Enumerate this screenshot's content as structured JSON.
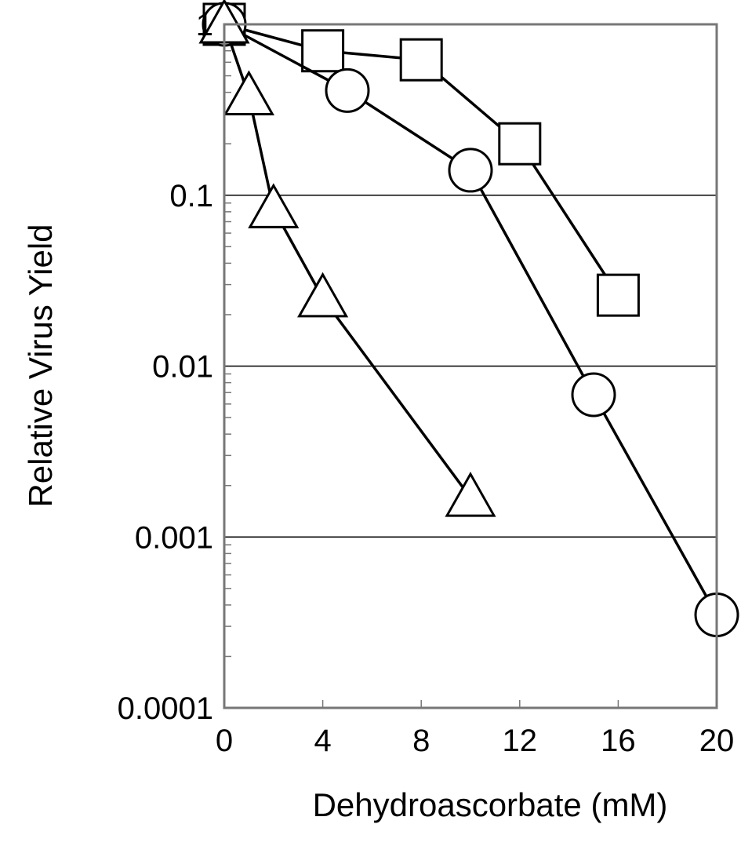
{
  "chart_data": {
    "type": "scatter",
    "title": "",
    "xlabel": "Dehydroascorbate (mM)",
    "ylabel": "Relative Virus Yield",
    "x_ticks": [
      "0",
      "4",
      "8",
      "12",
      "16",
      "20"
    ],
    "y_ticks": [
      "0.0001",
      "0.001",
      "0.01",
      "0.1",
      "1"
    ],
    "xlim": [
      0,
      20
    ],
    "ylim": [
      0.0001,
      1
    ],
    "y_scale": "log",
    "grid": "horizontal at decades",
    "series": [
      {
        "marker": "square",
        "x": [
          0,
          4,
          8,
          12,
          16
        ],
        "y": [
          1,
          0.7,
          0.62,
          0.2,
          0.026
        ]
      },
      {
        "marker": "circle",
        "x": [
          0,
          5,
          10,
          15,
          20
        ],
        "y": [
          1,
          0.41,
          0.14,
          0.0068,
          0.00035
        ]
      },
      {
        "marker": "triangle",
        "x": [
          0,
          1,
          2,
          4,
          10
        ],
        "y": [
          1,
          0.38,
          0.083,
          0.025,
          0.0017
        ]
      }
    ],
    "colors": {
      "line": "#000000",
      "marker_fill": "#ffffff",
      "grid": "#000000"
    }
  }
}
